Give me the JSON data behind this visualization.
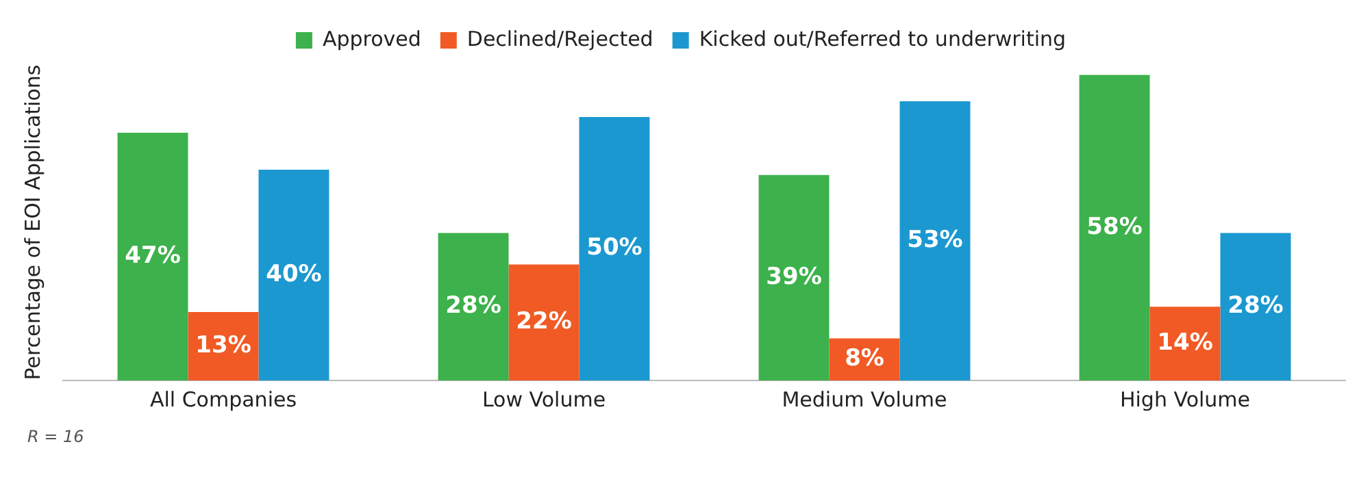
{
  "chart_data": {
    "type": "bar",
    "ylabel": "Percentage of EOI Applications",
    "categories": [
      "All Companies",
      "Low Volume",
      "Medium Volume",
      "High Volume"
    ],
    "series": [
      {
        "name": "Approved",
        "color": "#3db14b",
        "values": [
          47,
          28,
          39,
          58
        ],
        "value_labels": [
          "47%",
          "28%",
          "39%",
          "58%"
        ]
      },
      {
        "name": "Declined/Rejected",
        "color": "#f15a24",
        "values": [
          13,
          22,
          8,
          14
        ],
        "value_labels": [
          "13%",
          "22%",
          "8%",
          "14%"
        ]
      },
      {
        "name": "Kicked out/Referred to underwriting",
        "color": "#1b98d0",
        "values": [
          40,
          50,
          53,
          28
        ],
        "value_labels": [
          "40%",
          "50%",
          "53%",
          "28%"
        ]
      }
    ],
    "grid": false,
    "legend": "top",
    "annotations": [
      "R = 16"
    ]
  }
}
